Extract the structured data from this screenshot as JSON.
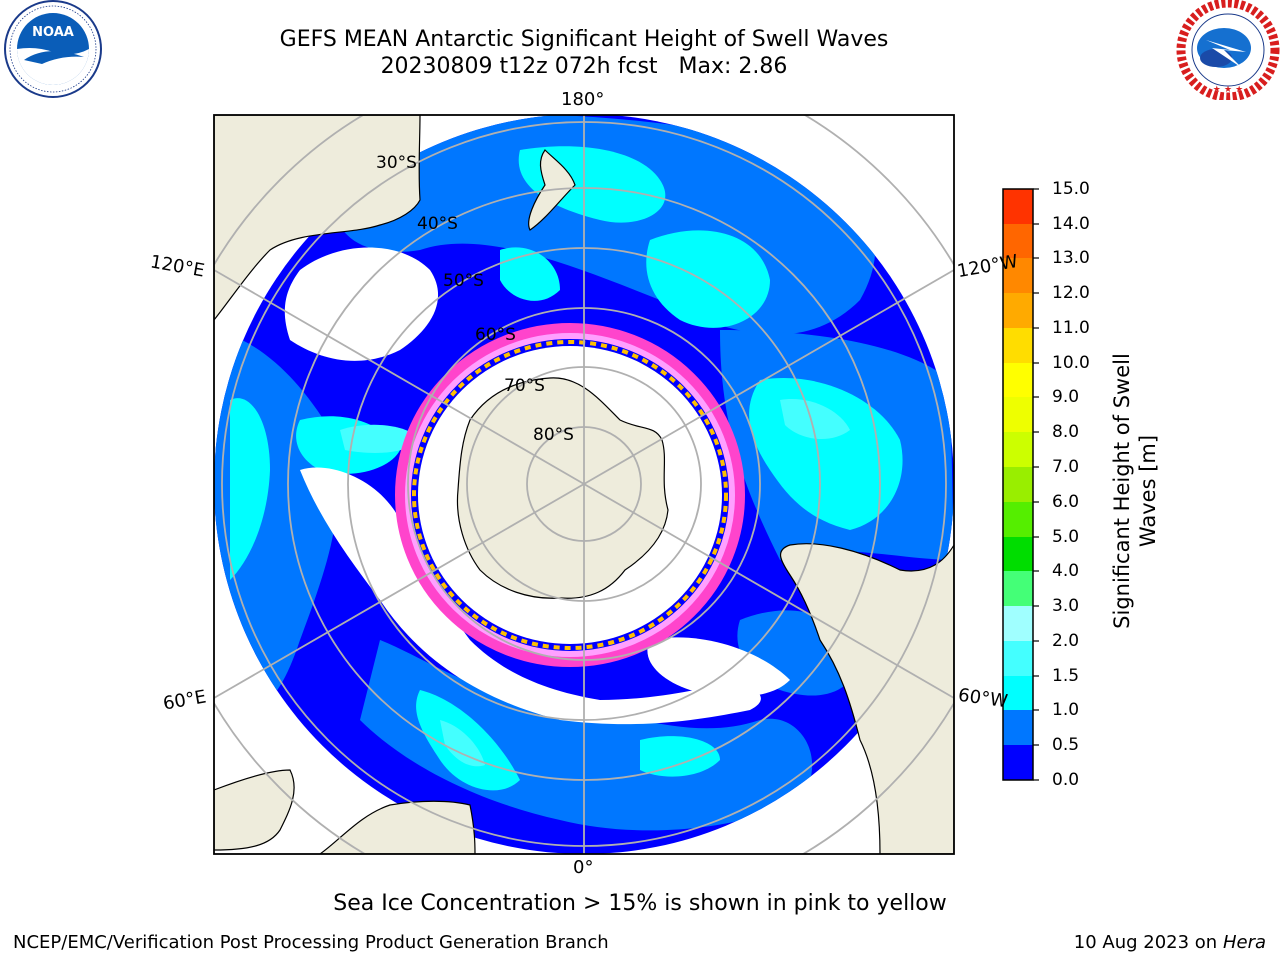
{
  "title": {
    "line1": "GEFS MEAN Antarctic Significant Height of Swell Waves",
    "line2": "20230809 t12z 072h fcst",
    "max_label": "Max: 2.86"
  },
  "logos": {
    "noaa": {
      "text": "NOAA",
      "ring_text": "NATIONAL OCEANIC AND ATMOSPHERIC ADMINISTRATION · U.S. DEPARTMENT OF COMMERCE"
    },
    "nws": {
      "ring_text": "NATIONAL WEATHER SERVICE"
    }
  },
  "map": {
    "projection": "south-polar-stereographic",
    "longitude_labels": [
      "180°",
      "120°E",
      "120°W",
      "60°E",
      "60°W",
      "0°"
    ],
    "latitude_labels": [
      "30°S",
      "40°S",
      "50°S",
      "60°S",
      "70°S",
      "80°S"
    ],
    "land_color": "#eeecdc",
    "ocean_no_swell_color": "#ffffff",
    "sea_ice_colors": [
      "#ff44cc",
      "#ffa0ff",
      "#ffc000",
      "#ffe000"
    ]
  },
  "colorbar": {
    "label_line1": "Significant Height of Swell",
    "label_line2": "Waves [m]",
    "ticks": [
      "15.0",
      "14.0",
      "13.0",
      "12.0",
      "11.0",
      "10.0",
      "9.0",
      "8.0",
      "7.0",
      "6.0",
      "5.0",
      "4.0",
      "3.0",
      "2.0",
      "1.5",
      "1.0",
      "0.5",
      "0.0"
    ],
    "colors_bottom_to_top": [
      "#0000ff",
      "#0077ff",
      "#00ffff",
      "#44ffff",
      "#a0ffff",
      "#44ff77",
      "#00dd00",
      "#55ee00",
      "#99ee00",
      "#ccff00",
      "#eeff00",
      "#ffff00",
      "#ffdd00",
      "#ffaa00",
      "#ff8800",
      "#ff6600",
      "#ff3300"
    ]
  },
  "footer": {
    "sea_ice_note": "Sea Ice Concentration > 15% is shown in pink to yellow",
    "branch": "NCEP/EMC/Verification Post Processing Product Generation Branch",
    "date": "10 Aug 2023 on",
    "machine": "Hera"
  }
}
